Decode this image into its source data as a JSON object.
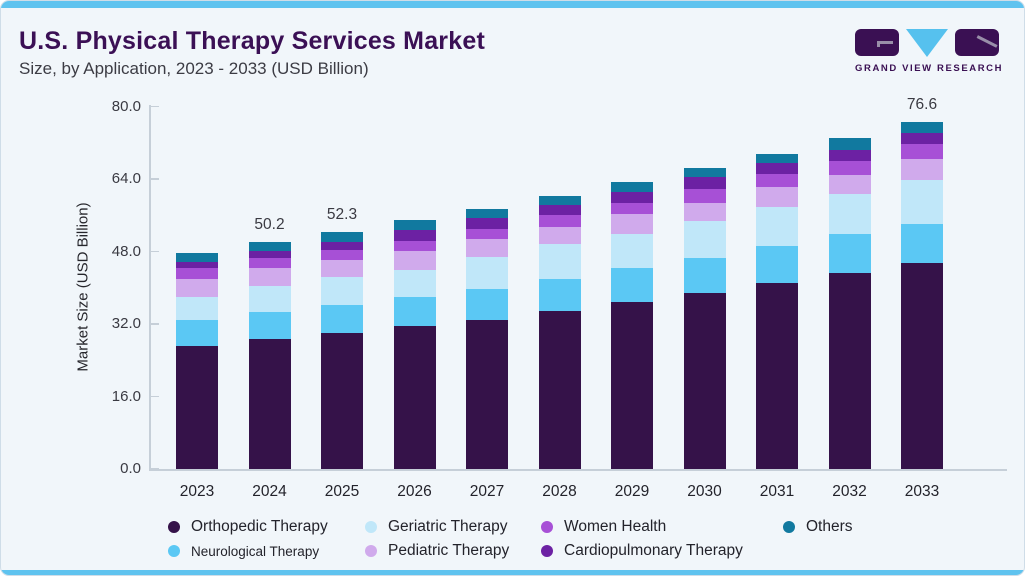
{
  "header": {
    "title": "U.S. Physical Therapy Services Market",
    "subtitle": "Size, by Application, 2023 - 2033 (USD Billion)"
  },
  "logo": {
    "text": "GRAND VIEW RESEARCH"
  },
  "colors": {
    "accent_bar": "#5fc3ef",
    "title": "#3b1055",
    "background": "#f1f6fa",
    "axis": "#c6cfd8"
  },
  "chart_data": {
    "type": "bar",
    "stacked": true,
    "title": "U.S. Physical Therapy Services Market Size, by Application, 2023 - 2033 (USD Billion)",
    "xlabel": "",
    "ylabel": "Market Size (USD Billion)",
    "ylim": [
      0,
      80
    ],
    "yticks": [
      {
        "value": 0,
        "label": "0.0"
      },
      {
        "value": 16,
        "label": "16.0"
      },
      {
        "value": 32,
        "label": "32.0"
      },
      {
        "value": 48,
        "label": "48.0"
      },
      {
        "value": 64,
        "label": "64.0"
      },
      {
        "value": 80,
        "label": "80.0"
      }
    ],
    "grid": false,
    "legend_position": "bottom",
    "categories": [
      "2023",
      "2024",
      "2025",
      "2026",
      "2027",
      "2028",
      "2029",
      "2030",
      "2031",
      "2032",
      "2033"
    ],
    "series": [
      {
        "name": "Orthopedic Therapy",
        "color": "#351249",
        "values": [
          27.1,
          28.6,
          30.1,
          31.5,
          33.0,
          34.9,
          36.9,
          38.9,
          41.0,
          43.3,
          45.4
        ]
      },
      {
        "name": "Neurological Therapy",
        "color": "#5bc8f4",
        "values": [
          5.9,
          6.0,
          6.2,
          6.5,
          6.8,
          7.1,
          7.5,
          7.7,
          8.2,
          8.6,
          8.7
        ]
      },
      {
        "name": "Geriatric Therapy",
        "color": "#c0e7f9",
        "values": [
          5.0,
          5.8,
          6.0,
          6.0,
          7.1,
          7.7,
          7.5,
          8.1,
          8.6,
          8.7,
          9.7
        ]
      },
      {
        "name": "Pediatric Therapy",
        "color": "#d0aaec",
        "values": [
          4.0,
          4.0,
          3.9,
          4.1,
          3.9,
          3.8,
          4.3,
          4.1,
          4.5,
          4.3,
          4.6
        ]
      },
      {
        "name": "Women Health",
        "color": "#a750d6",
        "values": [
          2.3,
          2.1,
          2.1,
          2.3,
          2.2,
          2.5,
          2.6,
          3.0,
          2.9,
          3.0,
          3.3
        ]
      },
      {
        "name": "Cardiopulmonary Therapy",
        "color": "#6c21a3",
        "values": [
          1.4,
          1.7,
          1.9,
          2.3,
          2.3,
          2.2,
          2.4,
          2.6,
          2.3,
          2.5,
          2.5
        ]
      },
      {
        "name": "Others",
        "color": "#11799f",
        "values": [
          1.9,
          2.0,
          2.1,
          2.2,
          2.2,
          2.1,
          2.1,
          2.0,
          2.1,
          2.6,
          2.4
        ]
      }
    ],
    "totals": [
      47.6,
      50.2,
      52.3,
      54.9,
      57.5,
      60.3,
      63.3,
      66.4,
      69.6,
      73.0,
      76.6
    ],
    "total_labels": {
      "2024": "50.2",
      "2025": "52.3",
      "2033": "76.6"
    }
  },
  "legend": {
    "rows": [
      [
        "Orthopedic Therapy",
        "Geriatric Therapy",
        "Women Health",
        "Others"
      ],
      [
        "Neurological Therapy",
        "Pediatric Therapy",
        "Cardiopulmonary Therapy"
      ]
    ]
  }
}
